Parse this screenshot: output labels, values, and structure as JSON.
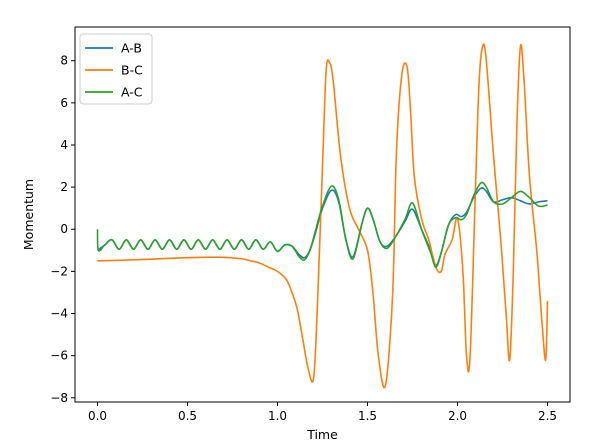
{
  "chart_data": {
    "type": "line",
    "title": "",
    "xlabel": "Time",
    "ylabel": "Momentum",
    "xlim": [
      -0.125,
      2.625
    ],
    "ylim": [
      -8.2,
      9.6
    ],
    "xticks": [
      0.0,
      0.5,
      1.0,
      1.5,
      2.0,
      2.5
    ],
    "xtick_labels": [
      "0.0",
      "0.5",
      "1.0",
      "1.5",
      "2.0",
      "2.5"
    ],
    "yticks": [
      -8,
      -6,
      -4,
      -2,
      0,
      2,
      4,
      6,
      8
    ],
    "ytick_labels": [
      "−8",
      "−6",
      "−4",
      "−2",
      "0",
      "2",
      "4",
      "6",
      "8"
    ],
    "grid": false,
    "legend_position": "top-left",
    "series": [
      {
        "name": "A-B",
        "color": "#1f77b4",
        "x": [
          0.0,
          0.04,
          0.08,
          0.12,
          0.16,
          0.2,
          0.24,
          0.28,
          0.32,
          0.36,
          0.4,
          0.44,
          0.48,
          0.52,
          0.56,
          0.6,
          0.64,
          0.68,
          0.72,
          0.76,
          0.8,
          0.84,
          0.88,
          0.92,
          0.96,
          1.0,
          1.04,
          1.08,
          1.12,
          1.15,
          1.18,
          1.21,
          1.25,
          1.3,
          1.34,
          1.38,
          1.42,
          1.47,
          1.5,
          1.53,
          1.57,
          1.61,
          1.66,
          1.71,
          1.75,
          1.8,
          1.85,
          1.88,
          1.91,
          1.95,
          1.99,
          2.02,
          2.05,
          2.09,
          2.13,
          2.16,
          2.2,
          2.25,
          2.3,
          2.35,
          2.4,
          2.45,
          2.5
        ],
        "values": [
          -1.0,
          -0.75,
          -0.5,
          -0.95,
          -0.5,
          -0.95,
          -0.5,
          -0.95,
          -0.5,
          -0.95,
          -0.5,
          -0.95,
          -0.5,
          -0.95,
          -0.5,
          -0.95,
          -0.5,
          -0.95,
          -0.5,
          -0.95,
          -0.5,
          -0.95,
          -0.5,
          -0.95,
          -0.6,
          -1.05,
          -0.75,
          -0.8,
          -1.2,
          -1.35,
          -1.0,
          -0.2,
          1.0,
          1.85,
          1.3,
          -0.5,
          -1.3,
          0.3,
          1.0,
          0.5,
          -0.6,
          -0.8,
          -0.3,
          0.4,
          0.95,
          0.0,
          -1.0,
          -1.7,
          -1.1,
          0.2,
          0.7,
          0.6,
          0.8,
          1.5,
          1.95,
          1.8,
          1.3,
          1.4,
          1.5,
          1.35,
          1.2,
          1.3,
          1.35
        ]
      },
      {
        "name": "B-C",
        "color": "#ff7f0e",
        "x": [
          0.0,
          0.1,
          0.2,
          0.3,
          0.4,
          0.5,
          0.6,
          0.7,
          0.8,
          0.85,
          0.9,
          0.95,
          1.0,
          1.05,
          1.08,
          1.11,
          1.14,
          1.17,
          1.2,
          1.22,
          1.25,
          1.27,
          1.29,
          1.31,
          1.35,
          1.4,
          1.45,
          1.5,
          1.53,
          1.56,
          1.6,
          1.64,
          1.66,
          1.69,
          1.72,
          1.74,
          1.76,
          1.8,
          1.84,
          1.88,
          1.91,
          1.93,
          1.97,
          2.0,
          2.03,
          2.05,
          2.07,
          2.1,
          2.12,
          2.14,
          2.16,
          2.2,
          2.24,
          2.27,
          2.29,
          2.31,
          2.33,
          2.35,
          2.37,
          2.4,
          2.44,
          2.47,
          2.49,
          2.5
        ],
        "values": [
          -1.5,
          -1.48,
          -1.45,
          -1.42,
          -1.38,
          -1.35,
          -1.33,
          -1.33,
          -1.4,
          -1.5,
          -1.6,
          -1.8,
          -2.0,
          -2.4,
          -3.0,
          -3.8,
          -5.2,
          -6.6,
          -7.1,
          -4.0,
          3.0,
          7.5,
          7.9,
          7.0,
          3.5,
          1.0,
          0.0,
          -1.0,
          -3.0,
          -6.0,
          -7.4,
          -3.0,
          3.5,
          7.3,
          7.7,
          5.5,
          2.5,
          0.5,
          -0.5,
          -1.8,
          -2.0,
          -1.2,
          -0.5,
          0.5,
          -2.0,
          -6.0,
          -6.0,
          2.0,
          7.0,
          8.7,
          8.0,
          3.5,
          -0.5,
          -4.0,
          -6.2,
          -2.0,
          5.0,
          8.7,
          7.0,
          2.5,
          -1.0,
          -4.5,
          -6.2,
          -3.4
        ]
      },
      {
        "name": "A-C",
        "color": "#2ca02c",
        "x": [
          0.0,
          0.005,
          0.04,
          0.08,
          0.12,
          0.16,
          0.2,
          0.24,
          0.28,
          0.32,
          0.36,
          0.4,
          0.44,
          0.48,
          0.52,
          0.56,
          0.6,
          0.64,
          0.68,
          0.72,
          0.76,
          0.8,
          0.84,
          0.88,
          0.92,
          0.96,
          1.0,
          1.04,
          1.08,
          1.12,
          1.15,
          1.18,
          1.21,
          1.25,
          1.3,
          1.34,
          1.38,
          1.42,
          1.47,
          1.5,
          1.53,
          1.57,
          1.61,
          1.66,
          1.71,
          1.75,
          1.8,
          1.85,
          1.88,
          1.91,
          1.95,
          1.99,
          2.02,
          2.05,
          2.09,
          2.13,
          2.16,
          2.2,
          2.25,
          2.3,
          2.35,
          2.4,
          2.45,
          2.5
        ],
        "values": [
          0.0,
          -1.0,
          -0.75,
          -0.5,
          -0.95,
          -0.5,
          -0.95,
          -0.5,
          -0.95,
          -0.5,
          -0.95,
          -0.5,
          -0.95,
          -0.5,
          -0.95,
          -0.5,
          -0.95,
          -0.5,
          -0.95,
          -0.5,
          -0.95,
          -0.5,
          -0.95,
          -0.5,
          -0.95,
          -0.6,
          -1.05,
          -0.75,
          -0.8,
          -1.3,
          -1.45,
          -1.0,
          -0.1,
          1.1,
          2.05,
          1.4,
          -0.5,
          -1.4,
          0.3,
          1.0,
          0.5,
          -0.6,
          -0.9,
          -0.3,
          0.5,
          1.25,
          0.0,
          -1.1,
          -1.8,
          -1.1,
          0.2,
          0.55,
          0.45,
          0.7,
          1.6,
          2.2,
          2.0,
          1.3,
          1.2,
          1.5,
          1.8,
          1.5,
          1.1,
          1.15
        ]
      }
    ]
  }
}
